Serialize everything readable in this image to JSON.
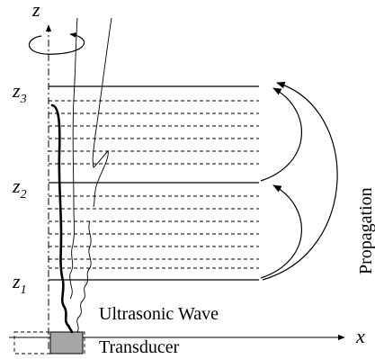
{
  "axes": {
    "z_label": "z",
    "x_label": "x"
  },
  "levels": [
    {
      "label_main": "z",
      "label_sub": "1"
    },
    {
      "label_main": "z",
      "label_sub": "2"
    },
    {
      "label_main": "z",
      "label_sub": "3"
    }
  ],
  "labels": {
    "propagation": "Propagation",
    "ultrasonic_wave": "Ultrasonic Wave",
    "transducer": "Transducer"
  },
  "colors": {
    "ink": "#000000",
    "transducer_fill": "#a6a6a6",
    "background": "#ffffff"
  }
}
